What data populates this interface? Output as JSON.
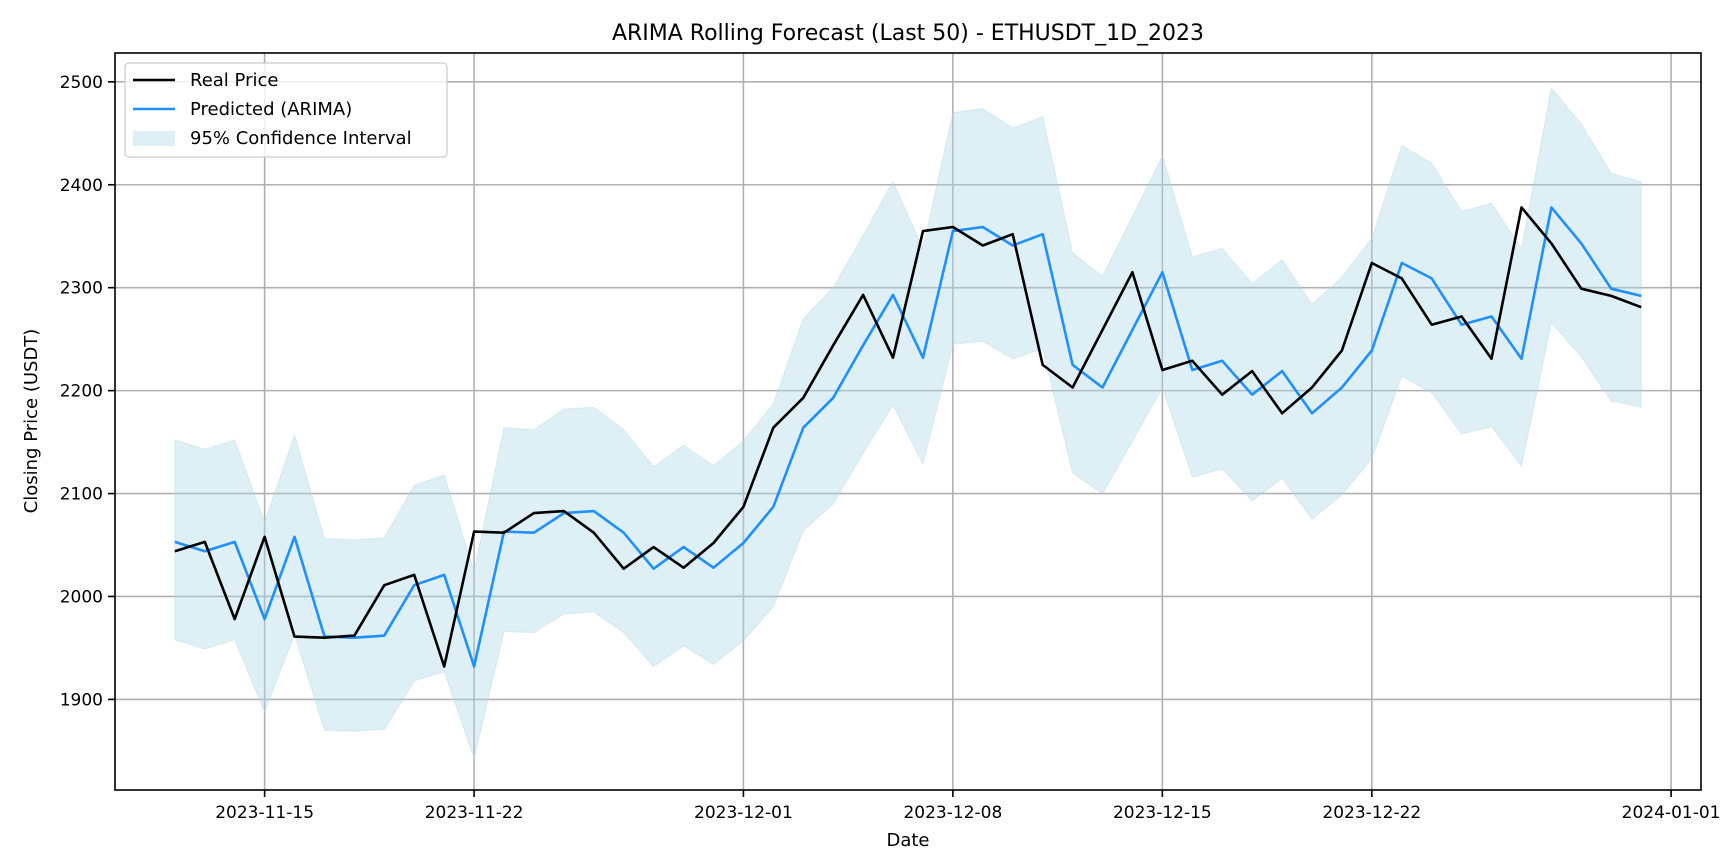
{
  "chart_data": {
    "type": "line",
    "title": "ARIMA Rolling Forecast (Last 50) - ETHUSDT_1D_2023",
    "xlabel": "Date",
    "ylabel": "Closing Price (USDT)",
    "x_ticks": [
      "2023-11-15",
      "2023-11-22",
      "2023-12-01",
      "2023-12-08",
      "2023-12-15",
      "2023-12-22",
      "2024-01-01"
    ],
    "y_ticks": [
      1900,
      2000,
      2100,
      2200,
      2300,
      2400,
      2500
    ],
    "xlim": [
      "2023-11-10",
      "2024-01-02"
    ],
    "ylim": [
      1812,
      2528
    ],
    "grid": true,
    "legend_position": "top-left",
    "dates": [
      "2023-11-12",
      "2023-11-13",
      "2023-11-14",
      "2023-11-15",
      "2023-11-16",
      "2023-11-17",
      "2023-11-18",
      "2023-11-19",
      "2023-11-20",
      "2023-11-21",
      "2023-11-22",
      "2023-11-23",
      "2023-11-24",
      "2023-11-25",
      "2023-11-26",
      "2023-11-27",
      "2023-11-28",
      "2023-11-29",
      "2023-11-30",
      "2023-12-01",
      "2023-12-02",
      "2023-12-03",
      "2023-12-04",
      "2023-12-05",
      "2023-12-06",
      "2023-12-07",
      "2023-12-08",
      "2023-12-09",
      "2023-12-10",
      "2023-12-11",
      "2023-12-12",
      "2023-12-13",
      "2023-12-14",
      "2023-12-15",
      "2023-12-16",
      "2023-12-17",
      "2023-12-18",
      "2023-12-19",
      "2023-12-20",
      "2023-12-21",
      "2023-12-22",
      "2023-12-23",
      "2023-12-24",
      "2023-12-25",
      "2023-12-26",
      "2023-12-27",
      "2023-12-28",
      "2023-12-29",
      "2023-12-30",
      "2023-12-31"
    ],
    "series": [
      {
        "name": "Real Price",
        "color": "#000000",
        "values": [
          2044,
          2053,
          1978,
          2058,
          1961,
          1960,
          1962,
          2011,
          2021,
          1932,
          2063,
          2062,
          2081,
          2083,
          2062,
          2027,
          2048,
          2028,
          2052,
          2087,
          2164,
          2193,
          2244,
          2293,
          2232,
          2355,
          2359,
          2341,
          2352,
          2225,
          2203,
          2259,
          2315,
          2220,
          2229,
          2196,
          2219,
          2178,
          2203,
          2239,
          2324,
          2309,
          2264,
          2272,
          2231,
          2378,
          2343,
          2299,
          2292,
          2281
        ]
      },
      {
        "name": "Predicted (ARIMA)",
        "color": "#1e90ff",
        "values": [
          2053,
          2044,
          2053,
          1978,
          2058,
          1961,
          1960,
          1962,
          2011,
          2021,
          1932,
          2063,
          2062,
          2081,
          2083,
          2062,
          2027,
          2048,
          2028,
          2052,
          2087,
          2164,
          2193,
          2244,
          2293,
          2232,
          2355,
          2359,
          2341,
          2352,
          2225,
          2203,
          2259,
          2315,
          2220,
          2229,
          2196,
          2219,
          2178,
          2203,
          2239,
          2324,
          2309,
          2264,
          2272,
          2231,
          2378,
          2343,
          2299,
          2292
        ]
      }
    ],
    "confidence_interval": {
      "name": "95% Confidence Interval",
      "color": "#add8e6",
      "lower": [
        1958,
        1949,
        1958,
        1888,
        1963,
        1870,
        1869,
        1871,
        1918,
        1927,
        1843,
        1966,
        1965,
        1983,
        1985,
        1965,
        1932,
        1952,
        1934,
        1957,
        1990,
        2064,
        2090,
        2139,
        2186,
        2129,
        2245,
        2248,
        2231,
        2241,
        2120,
        2100,
        2151,
        2203,
        2116,
        2124,
        2093,
        2115,
        2075,
        2099,
        2134,
        2214,
        2198,
        2158,
        2165,
        2127,
        2266,
        2233,
        2190,
        2184
      ],
      "upper": [
        2152,
        2143,
        2152,
        2072,
        2157,
        2056,
        2055,
        2057,
        2108,
        2118,
        2024,
        2164,
        2162,
        2182,
        2184,
        2162,
        2126,
        2147,
        2127,
        2151,
        2187,
        2270,
        2300,
        2351,
        2403,
        2338,
        2470,
        2474,
        2455,
        2466,
        2334,
        2311,
        2369,
        2428,
        2330,
        2338,
        2304,
        2327,
        2284,
        2310,
        2348,
        2438,
        2421,
        2374,
        2382,
        2338,
        2494,
        2459,
        2411,
        2403
      ]
    }
  }
}
